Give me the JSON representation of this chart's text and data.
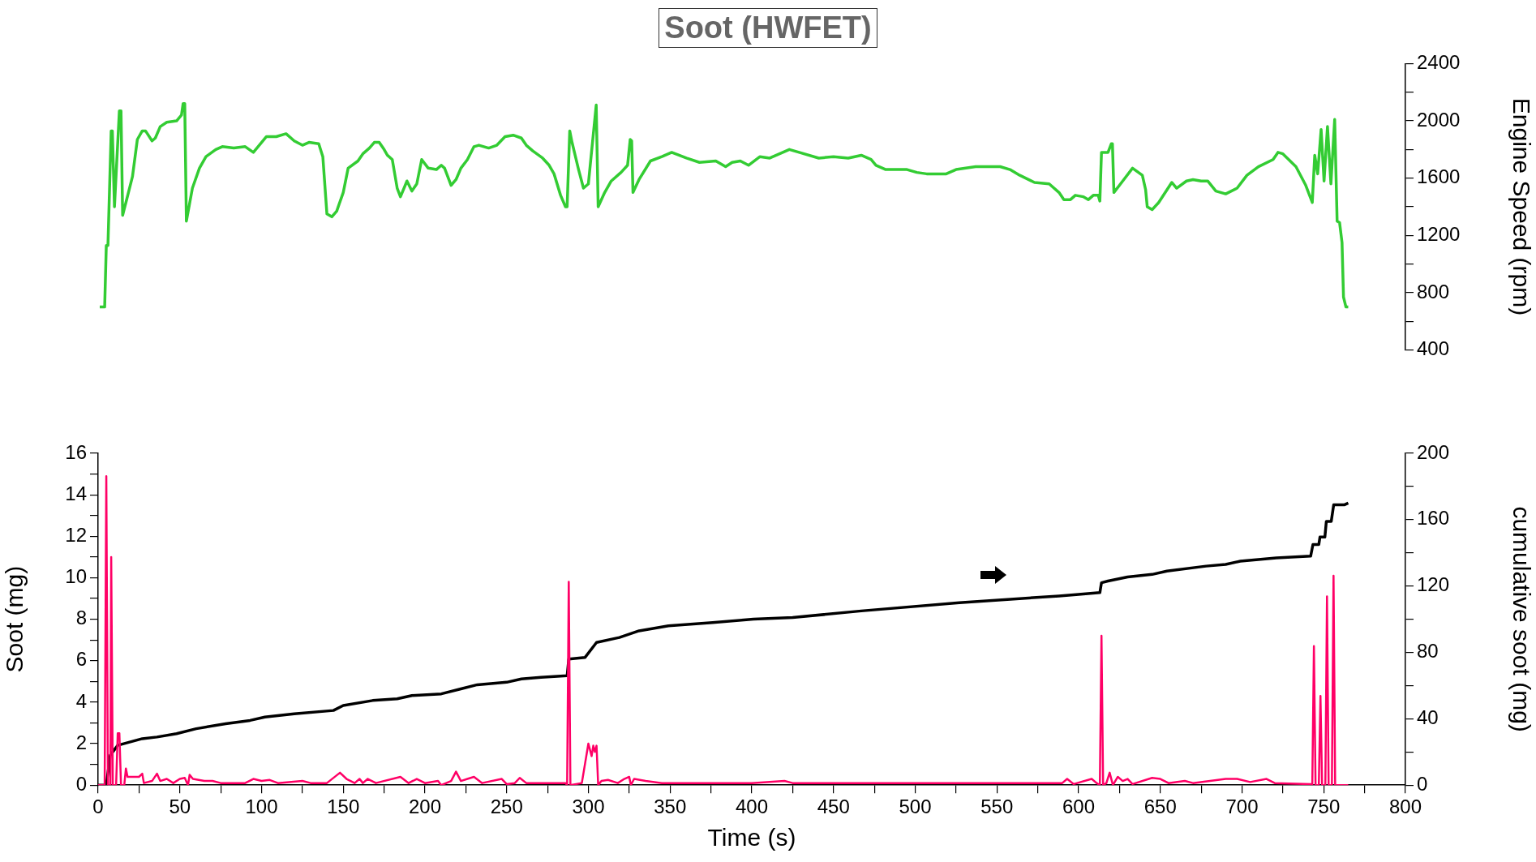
{
  "chart_data": [
    {
      "type": "line",
      "title": "Soot (HWFET)",
      "y2label": "Engine Speed (rpm)",
      "xlim": [
        0,
        800
      ],
      "y2lim": [
        400,
        2400
      ],
      "y2ticks": [
        400,
        {
          "value": 600,
          "label": null
        },
        800,
        {
          "value": 1000,
          "label": null
        },
        1200,
        {
          "value": 1400,
          "label": null
        },
        1600,
        {
          "value": 1800,
          "label": null
        },
        2000,
        {
          "value": 2200,
          "label": null
        },
        2400
      ],
      "tick_labels": "y2",
      "series": [
        {
          "color": "#33cc33",
          "axis": "y2",
          "x": [
            1,
            4,
            5,
            6,
            8,
            8.7,
            10,
            13,
            14,
            15,
            17,
            21,
            24,
            27,
            29,
            33,
            35,
            38,
            42,
            48,
            51,
            52,
            53,
            54,
            57.7,
            62,
            66,
            72,
            76,
            83,
            90,
            95,
            103,
            109,
            115,
            120,
            125,
            129,
            135,
            137.5,
            140,
            143,
            146,
            150,
            153,
            159,
            162,
            166,
            169,
            172,
            175,
            177,
            180,
            183,
            185,
            189,
            192,
            195,
            198,
            202,
            207,
            210,
            212,
            216,
            219,
            222,
            226,
            230,
            233,
            239,
            244,
            249,
            254,
            259,
            262,
            266,
            272,
            276,
            279,
            283,
            286,
            287,
            288.6,
            290,
            294,
            297,
            300,
            304.8,
            306,
            310,
            314,
            320,
            324,
            325.6,
            326.5,
            327.3,
            331,
            338,
            345,
            351,
            360,
            368,
            378,
            384,
            388,
            393,
            398,
            405,
            411,
            417,
            423,
            429,
            441,
            450,
            459,
            467,
            473,
            476,
            482,
            495,
            501,
            507,
            519,
            525,
            537,
            552,
            558,
            564,
            573,
            582,
            588,
            591,
            595,
            598,
            603,
            606,
            609,
            612,
            613,
            614,
            618,
            620,
            620.7,
            621.6,
            627,
            633,
            639,
            641,
            642,
            645,
            649,
            657,
            660,
            666,
            670,
            675,
            679,
            684,
            690,
            697,
            703,
            710,
            719,
            722,
            725,
            733,
            739,
            743,
            744.5,
            746.3,
            748.4,
            750.2,
            752.3,
            754.4,
            756.7,
            758.2,
            759.7,
            761.2,
            762.1,
            763.6,
            765
          ],
          "values": [
            700,
            700,
            1130,
            1130,
            1930,
            1930,
            1400,
            2070,
            2070,
            1340,
            1430,
            1610,
            1870,
            1930,
            1930,
            1860,
            1880,
            1960,
            1990,
            2000,
            2040,
            2120,
            2120,
            1300,
            1530,
            1670,
            1750,
            1800,
            1820,
            1810,
            1820,
            1780,
            1890,
            1890,
            1910,
            1860,
            1830,
            1850,
            1840,
            1750,
            1350,
            1330,
            1370,
            1500,
            1670,
            1720,
            1770,
            1810,
            1850,
            1850,
            1800,
            1760,
            1730,
            1530,
            1470,
            1580,
            1510,
            1560,
            1730,
            1670,
            1660,
            1690,
            1670,
            1550,
            1590,
            1670,
            1730,
            1820,
            1830,
            1810,
            1830,
            1890,
            1900,
            1880,
            1830,
            1790,
            1740,
            1690,
            1630,
            1480,
            1400,
            1400,
            1930,
            1850,
            1660,
            1530,
            1560,
            2110,
            1400,
            1500,
            1580,
            1640,
            1690,
            1870,
            1860,
            1500,
            1590,
            1720,
            1750,
            1780,
            1740,
            1710,
            1720,
            1680,
            1710,
            1720,
            1690,
            1750,
            1740,
            1770,
            1800,
            1780,
            1740,
            1750,
            1740,
            1760,
            1730,
            1690,
            1660,
            1660,
            1640,
            1630,
            1630,
            1660,
            1680,
            1680,
            1660,
            1620,
            1570,
            1560,
            1500,
            1450,
            1450,
            1480,
            1470,
            1450,
            1480,
            1480,
            1440,
            1780,
            1780,
            1840,
            1840,
            1500,
            1580,
            1670,
            1620,
            1520,
            1400,
            1380,
            1430,
            1570,
            1530,
            1580,
            1590,
            1580,
            1580,
            1510,
            1490,
            1530,
            1620,
            1680,
            1730,
            1780,
            1770,
            1680,
            1550,
            1430,
            1760,
            1630,
            1940,
            1580,
            1960,
            1560,
            2010,
            1300,
            1290,
            1150,
            770,
            700,
            700
          ]
        }
      ]
    },
    {
      "type": "line",
      "xlabel": "Time (s)",
      "ylabel": "Soot (mg)",
      "y2label": "cumulative soot (mg)",
      "xlim": [
        0,
        800
      ],
      "xticks": [
        0,
        {
          "value": 25,
          "label": null
        },
        50,
        {
          "value": 75,
          "label": null
        },
        100,
        {
          "value": 125,
          "label": null
        },
        150,
        {
          "value": 175,
          "label": null
        },
        200,
        {
          "value": 225,
          "label": null
        },
        250,
        {
          "value": 275,
          "label": null
        },
        300,
        {
          "value": 325,
          "label": null
        },
        350,
        {
          "value": 375,
          "label": null
        },
        400,
        {
          "value": 425,
          "label": null
        },
        450,
        {
          "value": 475,
          "label": null
        },
        500,
        {
          "value": 525,
          "label": null
        },
        550,
        {
          "value": 575,
          "label": null
        },
        600,
        {
          "value": 625,
          "label": null
        },
        650,
        {
          "value": 675,
          "label": null
        },
        700,
        {
          "value": 725,
          "label": null
        },
        750,
        {
          "value": 775,
          "label": null
        },
        800
      ],
      "ylim": [
        0,
        16
      ],
      "yticks": [
        0,
        {
          "value": 1,
          "label": null
        },
        2,
        {
          "value": 3,
          "label": null
        },
        4,
        {
          "value": 5,
          "label": null
        },
        6,
        {
          "value": 7,
          "label": null
        },
        8,
        {
          "value": 9,
          "label": null
        },
        10,
        {
          "value": 11,
          "label": null
        },
        12,
        {
          "value": 13,
          "label": null
        },
        14,
        {
          "value": 15,
          "label": null
        },
        16
      ],
      "y2lim": [
        0,
        200
      ],
      "y2ticks": [
        0,
        {
          "value": 20,
          "label": null
        },
        40,
        {
          "value": 60,
          "label": null
        },
        80,
        {
          "value": 100,
          "label": null
        },
        120,
        {
          "value": 140,
          "label": null
        },
        160,
        {
          "value": 180,
          "label": null
        },
        200
      ],
      "series": [
        {
          "color": "#ff0066",
          "x": [
            0,
            4,
            5,
            6,
            7.5,
            8,
            9,
            11,
            12,
            13,
            14,
            16,
            17,
            18,
            25,
            27,
            28,
            33,
            36,
            38,
            42,
            46,
            50,
            53,
            55,
            56,
            58,
            65,
            70,
            75,
            90,
            95,
            100,
            105,
            110,
            125,
            130,
            140,
            148,
            152,
            157,
            160,
            162,
            165,
            170,
            185,
            190,
            195,
            200,
            208,
            210,
            216,
            219,
            222,
            226,
            230,
            235,
            247,
            250,
            255,
            258,
            262,
            286,
            287,
            288,
            289,
            296,
            300,
            302,
            303,
            304,
            305,
            306,
            308,
            312,
            318,
            322,
            325,
            326,
            328,
            335,
            345,
            400,
            420,
            425,
            520,
            590,
            593,
            597,
            608,
            611,
            613,
            614,
            615,
            617,
            619,
            621,
            624,
            627,
            630,
            633,
            645,
            650,
            655,
            665,
            670,
            690,
            697,
            705,
            715,
            720,
            742,
            743,
            744,
            745,
            747,
            748,
            749,
            751,
            752,
            753,
            755,
            756,
            757,
            765
          ],
          "values": [
            0,
            0,
            14.9,
            0,
            0,
            11.0,
            0,
            0,
            2.5,
            2.5,
            0,
            0,
            0.8,
            0.4,
            0.4,
            0.55,
            0.1,
            0.2,
            0.55,
            0.2,
            0.3,
            0.1,
            0.3,
            0.35,
            0,
            0.5,
            0.3,
            0.2,
            0.2,
            0.1,
            0.1,
            0.3,
            0.2,
            0.25,
            0.1,
            0.2,
            0.1,
            0.1,
            0.6,
            0.3,
            0.1,
            0.3,
            0.1,
            0.3,
            0.1,
            0.4,
            0.1,
            0.3,
            0.1,
            0.2,
            0,
            0.2,
            0.65,
            0.2,
            0.3,
            0.4,
            0.1,
            0.3,
            0.05,
            0.1,
            0.35,
            0.1,
            0.1,
            0,
            9.8,
            0,
            0.1,
            2.0,
            1.4,
            1.9,
            1.6,
            1.9,
            0,
            0.2,
            0.25,
            0.1,
            0.3,
            0.4,
            0,
            0.3,
            0.2,
            0.1,
            0.1,
            0.2,
            0.1,
            0.1,
            0.1,
            0.3,
            0.05,
            0.3,
            0.1,
            0,
            7.2,
            0,
            0.1,
            0.6,
            0,
            0.4,
            0.2,
            0.3,
            0.05,
            0.35,
            0.3,
            0.1,
            0.2,
            0.1,
            0.3,
            0.3,
            0.15,
            0.3,
            0.1,
            0.05,
            0,
            6.7,
            0,
            0,
            4.3,
            0,
            0,
            9.1,
            0,
            0,
            10.1,
            0,
            0
          ]
        },
        {
          "color": "#000000",
          "axis": "y2",
          "x": [
            0,
            5,
            7.4,
            12,
            27,
            36,
            48,
            60,
            78,
            93,
            102,
            120,
            144,
            150,
            168,
            183,
            192,
            210,
            222,
            232,
            250,
            259,
            271,
            287,
            288,
            298,
            305,
            319,
            331,
            349,
            376,
            401,
            425,
            467,
            527,
            588,
            600,
            613,
            614,
            618,
            630,
            645,
            654,
            678,
            690,
            699,
            721,
            742,
            743.4,
            747,
            747.7,
            750.7,
            751.6,
            754.6,
            756.1,
            762.8,
            765
          ],
          "values": [
            0,
            0,
            18,
            24,
            28,
            29,
            31,
            34,
            37,
            39,
            41,
            43,
            45,
            48,
            51,
            52,
            54,
            55,
            58,
            60.5,
            62,
            64,
            65,
            66,
            76,
            77,
            86,
            89,
            93,
            96,
            98,
            100,
            101,
            105,
            110,
            114,
            115,
            116,
            122,
            123,
            125.5,
            127,
            129,
            132,
            133,
            135,
            137,
            138,
            145,
            145,
            149.5,
            149.5,
            159,
            159,
            169,
            169,
            170
          ]
        }
      ]
    }
  ]
}
